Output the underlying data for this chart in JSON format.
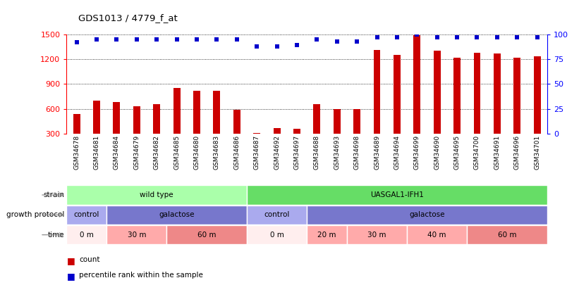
{
  "title": "GDS1013 / 4779_f_at",
  "samples": [
    "GSM34678",
    "GSM34681",
    "GSM34684",
    "GSM34679",
    "GSM34682",
    "GSM34685",
    "GSM34680",
    "GSM34683",
    "GSM34686",
    "GSM34687",
    "GSM34692",
    "GSM34697",
    "GSM34688",
    "GSM34693",
    "GSM34698",
    "GSM34689",
    "GSM34694",
    "GSM34699",
    "GSM34690",
    "GSM34695",
    "GSM34700",
    "GSM34691",
    "GSM34696",
    "GSM34701"
  ],
  "counts": [
    540,
    700,
    680,
    630,
    660,
    855,
    820,
    820,
    595,
    310,
    370,
    360,
    660,
    600,
    600,
    1310,
    1250,
    1490,
    1300,
    1215,
    1280,
    1265,
    1220,
    1235
  ],
  "percentiles": [
    92,
    95,
    95,
    95,
    95,
    95,
    95,
    95,
    95,
    88,
    88,
    89,
    95,
    93,
    93,
    97,
    97,
    100,
    97,
    97,
    97,
    97,
    97,
    97
  ],
  "bar_color": "#cc0000",
  "dot_color": "#0000cc",
  "ylim_left": [
    300,
    1500
  ],
  "yticks_left": [
    300,
    600,
    900,
    1200,
    1500
  ],
  "ylim_right": [
    0,
    100
  ],
  "yticks_right": [
    0,
    25,
    50,
    75,
    100
  ],
  "strain_groups": [
    {
      "label": "wild type",
      "start": 0,
      "end": 9,
      "color": "#aaffaa"
    },
    {
      "label": "UASGAL1-IFH1",
      "start": 9,
      "end": 24,
      "color": "#66dd66"
    }
  ],
  "protocol_groups": [
    {
      "label": "control",
      "start": 0,
      "end": 2,
      "color": "#aaaaee"
    },
    {
      "label": "galactose",
      "start": 2,
      "end": 9,
      "color": "#7777cc"
    },
    {
      "label": "control",
      "start": 9,
      "end": 12,
      "color": "#aaaaee"
    },
    {
      "label": "galactose",
      "start": 12,
      "end": 24,
      "color": "#7777cc"
    }
  ],
  "time_groups": [
    {
      "label": "0 m",
      "start": 0,
      "end": 2,
      "color": "#ffeeee"
    },
    {
      "label": "30 m",
      "start": 2,
      "end": 5,
      "color": "#ffaaaa"
    },
    {
      "label": "60 m",
      "start": 5,
      "end": 9,
      "color": "#ee8888"
    },
    {
      "label": "0 m",
      "start": 9,
      "end": 12,
      "color": "#ffeeee"
    },
    {
      "label": "20 m",
      "start": 12,
      "end": 14,
      "color": "#ffaaaa"
    },
    {
      "label": "30 m",
      "start": 14,
      "end": 17,
      "color": "#ffaaaa"
    },
    {
      "label": "40 m",
      "start": 17,
      "end": 20,
      "color": "#ffaaaa"
    },
    {
      "label": "60 m",
      "start": 20,
      "end": 24,
      "color": "#ee8888"
    }
  ]
}
